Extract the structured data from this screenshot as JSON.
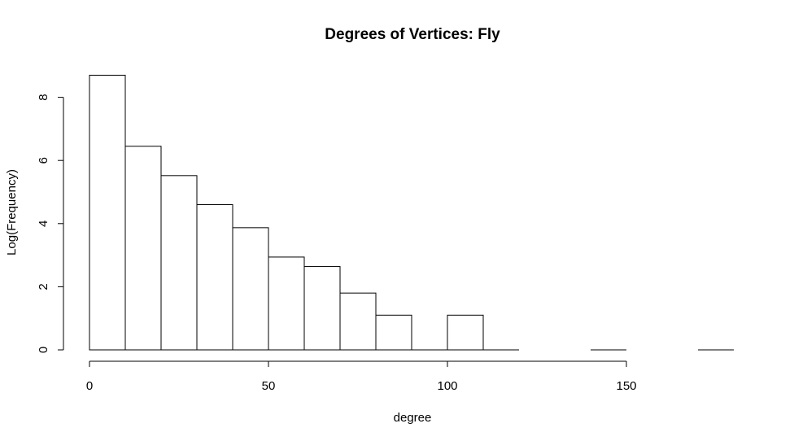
{
  "chart_data": {
    "type": "bar",
    "title": "Degrees of Vertices: Fly",
    "xlabel": "degree",
    "ylabel": "Log(Frequency)",
    "bin_width": 10,
    "bins": [
      {
        "start": 0,
        "end": 10,
        "value": 8.7
      },
      {
        "start": 10,
        "end": 20,
        "value": 6.45
      },
      {
        "start": 20,
        "end": 30,
        "value": 5.52
      },
      {
        "start": 30,
        "end": 40,
        "value": 4.6
      },
      {
        "start": 40,
        "end": 50,
        "value": 3.87
      },
      {
        "start": 50,
        "end": 60,
        "value": 2.94
      },
      {
        "start": 60,
        "end": 70,
        "value": 2.64
      },
      {
        "start": 70,
        "end": 80,
        "value": 1.8
      },
      {
        "start": 80,
        "end": 90,
        "value": 1.1
      },
      {
        "start": 90,
        "end": 100,
        "value": 0
      },
      {
        "start": 100,
        "end": 110,
        "value": 1.1
      },
      {
        "start": 110,
        "end": 120,
        "value": 0
      },
      {
        "start": 140,
        "end": 150,
        "value": 0
      },
      {
        "start": 170,
        "end": 180,
        "value": 0
      }
    ],
    "xticks": [
      0,
      50,
      100,
      150
    ],
    "yticks": [
      0,
      2,
      4,
      6,
      8
    ],
    "xlim": [
      0,
      180
    ],
    "ylim": [
      0,
      8.7
    ],
    "grid": false,
    "legend": "none"
  }
}
